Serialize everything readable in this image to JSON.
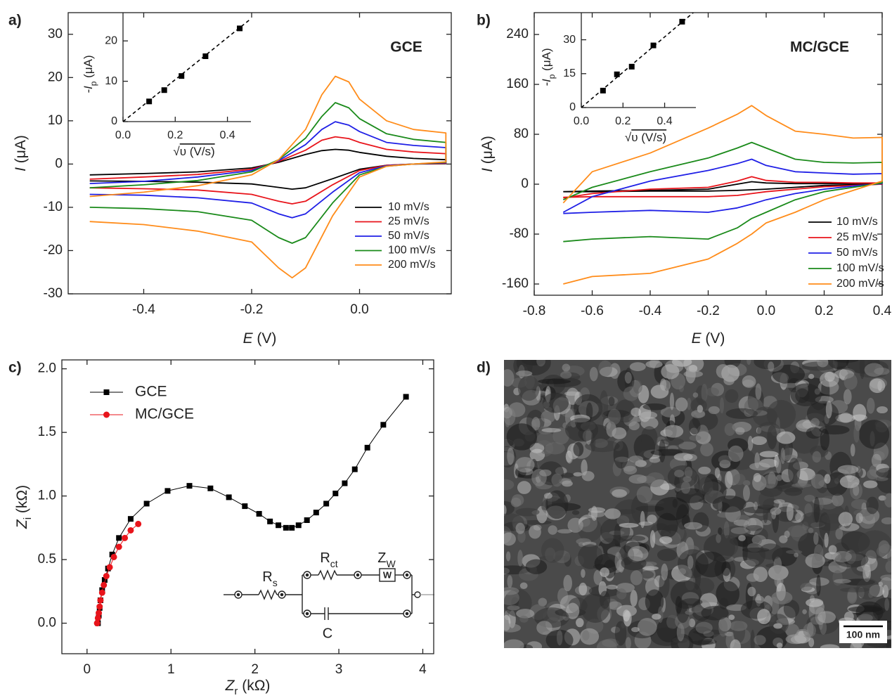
{
  "chart_data": [
    {
      "type": "line",
      "panel_label": "a)",
      "annotation": "GCE",
      "xlabel": [
        "E",
        " (V)"
      ],
      "ylabel": [
        "I",
        " (μA)"
      ],
      "xlim": [
        -0.54,
        0.17
      ],
      "xticks": [
        -0.4,
        -0.2,
        {
          "value": 0,
          "label": "0.0"
        }
      ],
      "ylim": [
        -30,
        35
      ],
      "yticks": [
        -30,
        -20,
        -10,
        0,
        10,
        20,
        30
      ],
      "legend": "lower right",
      "x": [
        -0.5,
        -0.4,
        -0.3,
        -0.2,
        -0.15,
        -0.1,
        -0.07,
        -0.045,
        -0.02,
        0,
        0.05,
        0.1,
        0.16,
        0.16,
        0.1,
        0.05,
        0,
        -0.05,
        -0.1,
        -0.125,
        -0.15,
        -0.2,
        -0.3,
        -0.4,
        -0.5
      ],
      "series": [
        {
          "name": "10 mV/s",
          "color": "#000000",
          "values": [
            -2.5,
            -2.2,
            -1.8,
            -0.9,
            0.4,
            2.2,
            3.1,
            3.4,
            3.2,
            2.7,
            1.8,
            1.3,
            1.0,
            0.1,
            0,
            -0.3,
            -1.2,
            -3.4,
            -5.5,
            -5.8,
            -5.4,
            -4.6,
            -4.2,
            -4,
            -3.9
          ]
        },
        {
          "name": "25 mV/s",
          "color": "#e8141b",
          "values": [
            -3.5,
            -3,
            -2.4,
            -1.2,
            0.6,
            3.2,
            5.5,
            6.3,
            5.9,
            5,
            3.4,
            2.8,
            2.4,
            0.2,
            0,
            -0.3,
            -1.5,
            -4.8,
            -8.6,
            -9.2,
            -8.6,
            -7,
            -6,
            -5.7,
            -5.5
          ]
        },
        {
          "name": "50 mV/s",
          "color": "#1f1fe6",
          "values": [
            -4.5,
            -4,
            -3,
            -1.5,
            0.8,
            4.5,
            8,
            9.8,
            9,
            7.5,
            5,
            4.3,
            3.8,
            0.3,
            0,
            -0.4,
            -2,
            -6.5,
            -11.5,
            -12.4,
            -11.5,
            -9,
            -7.8,
            -7.2,
            -7
          ]
        },
        {
          "name": "100 mV/s",
          "color": "#1a8a1a",
          "values": [
            -5.5,
            -4.8,
            -3.8,
            -1.8,
            1,
            6,
            11,
            14.2,
            13,
            10.5,
            7,
            5.7,
            5,
            0.4,
            0,
            -0.5,
            -2.5,
            -9,
            -17,
            -18.3,
            -17,
            -13,
            -11,
            -10.3,
            -10
          ]
        },
        {
          "name": "200 mV/s",
          "color": "#ff8c1a",
          "values": [
            -7.5,
            -6.5,
            -5,
            -2.5,
            1,
            8,
            16,
            20.3,
            19,
            15,
            10,
            8,
            7.2,
            0.5,
            0,
            -0.5,
            -3,
            -12,
            -24,
            -26.3,
            -24,
            -18,
            -15.5,
            -14,
            -13.3
          ]
        }
      ],
      "inset": {
        "type": "scatter",
        "xlabel": [
          "√",
          "υ (V/s)"
        ],
        "ylabel": [
          "-I",
          "p",
          " (μA)"
        ],
        "xlim": [
          0,
          0.49
        ],
        "xticks": [
          {
            "value": 0,
            "label": "0.0"
          },
          0.2,
          0.4
        ],
        "ylim": [
          0,
          27
        ],
        "yticks": [
          0,
          10,
          20
        ],
        "color": "#000000",
        "x": [
          0.1,
          0.158,
          0.224,
          0.316,
          0.447
        ],
        "values": [
          5.0,
          7.8,
          11.3,
          16.2,
          23.1
        ],
        "fit": {
          "x": [
            0,
            0.49
          ],
          "values": [
            0,
            25.5
          ]
        }
      }
    },
    {
      "type": "line",
      "panel_label": "b)",
      "annotation": "MC/GCE",
      "xlabel": [
        "E",
        " (V)"
      ],
      "ylabel": [
        "I",
        " (μA)"
      ],
      "xlim": [
        -0.8,
        0.4
      ],
      "xticks": [
        -0.8,
        -0.6,
        -0.4,
        -0.2,
        {
          "value": 0,
          "label": "0.0"
        },
        0.2,
        0.4
      ],
      "ylim": [
        -178,
        275
      ],
      "yticks": [
        -160,
        -80,
        0,
        80,
        160,
        240
      ],
      "legend": "lower right",
      "x": [
        -0.7,
        -0.6,
        -0.4,
        -0.2,
        -0.1,
        -0.05,
        0,
        0.1,
        0.2,
        0.3,
        0.4,
        0.4,
        0.3,
        0.2,
        0.1,
        0,
        -0.05,
        -0.1,
        -0.2,
        -0.4,
        -0.6,
        -0.7
      ],
      "series": [
        {
          "name": "10 mV/s",
          "color": "#000000",
          "values": [
            -12,
            -11,
            -10,
            -8,
            0,
            4,
            2,
            1,
            1,
            1,
            1,
            0,
            -1,
            -2,
            -5,
            -8,
            -9,
            -10,
            -11,
            -11,
            -12,
            -12
          ]
        },
        {
          "name": "25 mV/s",
          "color": "#e8141b",
          "values": [
            -22,
            -15,
            -8,
            -5,
            5,
            12,
            6,
            3,
            3,
            2,
            2,
            0,
            -2,
            -4,
            -8,
            -12,
            -15,
            -18,
            -20,
            -20,
            -20,
            -21
          ]
        },
        {
          "name": "50 mV/s",
          "color": "#1f1fe6",
          "values": [
            -45,
            -20,
            5,
            22,
            33,
            40,
            30,
            20,
            18,
            16,
            17,
            1,
            -3,
            -8,
            -15,
            -25,
            -32,
            -38,
            -45,
            -42,
            -45,
            -47
          ]
        },
        {
          "name": "100 mV/s",
          "color": "#1a8a1a",
          "values": [
            -25,
            -5,
            20,
            42,
            58,
            67,
            58,
            40,
            35,
            34,
            35,
            2,
            -5,
            -12,
            -25,
            -45,
            -55,
            -70,
            -88,
            -84,
            -88,
            -92
          ]
        },
        {
          "name": "200 mV/s",
          "color": "#ff8c1a",
          "values": [
            -30,
            20,
            50,
            90,
            112,
            126,
            110,
            85,
            80,
            74,
            75,
            5,
            -10,
            -25,
            -45,
            -62,
            -80,
            -95,
            -120,
            -143,
            -148,
            -160
          ]
        }
      ],
      "inset": {
        "type": "scatter",
        "xlabel": [
          "√",
          "υ (V/s)"
        ],
        "ylabel": [
          "-I",
          "p",
          " (μA)"
        ],
        "xlim": [
          0,
          0.55
        ],
        "xticks": [
          {
            "value": 0,
            "label": "0.0"
          },
          0.2,
          0.4
        ],
        "ylim": [
          0,
          42
        ],
        "yticks": [
          0,
          15,
          30
        ],
        "color": "#000000",
        "x": [
          0.104,
          0.171,
          0.242,
          0.346,
          0.484
        ],
        "values": [
          7.5,
          14.7,
          18.1,
          27.5,
          38
        ],
        "fit": {
          "x": [
            0,
            0.55
          ],
          "values": [
            0,
            43
          ]
        }
      }
    },
    {
      "type": "line",
      "panel_label": "c)",
      "xlabel": [
        "Z",
        "r",
        " (kΩ)"
      ],
      "ylabel": [
        "Z",
        "i",
        " (kΩ)"
      ],
      "xlim": [
        -0.3,
        4.13
      ],
      "xticks": [
        0,
        1,
        2,
        3,
        4
      ],
      "ylim": [
        -0.24,
        2.07
      ],
      "yticks": [
        {
          "value": 0,
          "label": "0.0"
        },
        0.5,
        {
          "value": 1,
          "label": "1.0"
        },
        1.5,
        {
          "value": 2,
          "label": "2.0"
        }
      ],
      "legend": "upper left",
      "series": [
        {
          "name": "GCE",
          "color": "#000000",
          "marker": "square",
          "x": [
            0.13,
            0.14,
            0.15,
            0.16,
            0.18,
            0.21,
            0.25,
            0.3,
            0.38,
            0.52,
            0.71,
            0.96,
            1.22,
            1.47,
            1.69,
            1.88,
            2.05,
            2.18,
            2.28,
            2.37,
            2.44,
            2.52,
            2.62,
            2.73,
            2.85,
            2.96,
            3.07,
            3.19,
            3.34,
            3.53,
            3.8
          ],
          "values": [
            0,
            0.06,
            0.12,
            0.18,
            0.26,
            0.34,
            0.43,
            0.54,
            0.67,
            0.82,
            0.94,
            1.04,
            1.08,
            1.06,
            0.99,
            0.92,
            0.86,
            0.8,
            0.77,
            0.75,
            0.75,
            0.77,
            0.81,
            0.87,
            0.94,
            1.02,
            1.1,
            1.21,
            1.38,
            1.56,
            1.78
          ]
        },
        {
          "name": "MC/GCE",
          "color": "#e8141b",
          "marker": "circle",
          "x": [
            0.12,
            0.13,
            0.14,
            0.15,
            0.16,
            0.18,
            0.2,
            0.23,
            0.27,
            0.32,
            0.38,
            0.45,
            0.52,
            0.61
          ],
          "values": [
            0,
            0.04,
            0.08,
            0.13,
            0.18,
            0.24,
            0.3,
            0.37,
            0.44,
            0.52,
            0.6,
            0.67,
            0.73,
            0.78
          ]
        }
      ],
      "circuit": {
        "Rs": [
          "R",
          "s"
        ],
        "Rct": [
          "R",
          "ct"
        ],
        "Zw": [
          "Z",
          "W"
        ],
        "W": "W",
        "C": "C"
      }
    },
    {
      "type": "image",
      "panel_label": "d)",
      "scale_bar": "100 nm"
    }
  ]
}
